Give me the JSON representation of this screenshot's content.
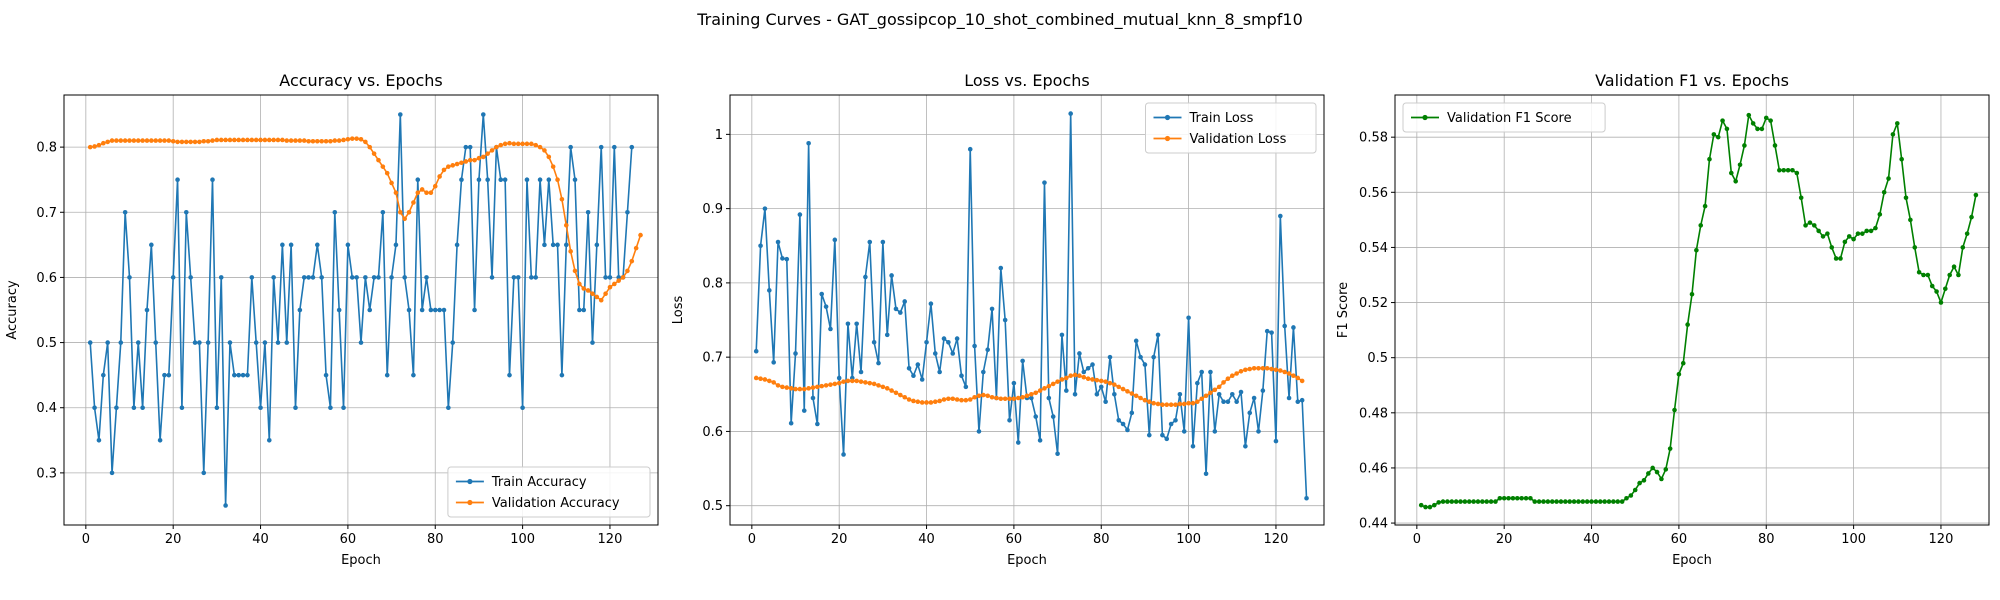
{
  "suptitle": "Training Curves - GAT_gossipcop_10_shot_combined_mutual_knn_8_smpf10",
  "colors": {
    "blue": "#1f77b4",
    "orange": "#ff7f0e",
    "green": "#008000",
    "grid": "#b0b0b0"
  },
  "chart_data": [
    {
      "type": "line",
      "title": "Accuracy vs. Epochs",
      "xlabel": "Epoch",
      "ylabel": "Accuracy",
      "xlim": [
        -5,
        131
      ],
      "ylim": [
        0.22,
        0.88
      ],
      "xticks": [
        0,
        20,
        40,
        60,
        80,
        100,
        120
      ],
      "yticks": [
        0.3,
        0.4,
        0.5,
        0.6,
        0.7,
        0.8
      ],
      "grid": true,
      "legend": "lower right",
      "series": [
        {
          "name": "Train Accuracy",
          "color": "#1f77b4",
          "values": [
            0.5,
            0.4,
            0.35,
            0.45,
            0.5,
            0.3,
            0.4,
            0.5,
            0.7,
            0.6,
            0.4,
            0.5,
            0.4,
            0.55,
            0.65,
            0.5,
            0.35,
            0.45,
            0.45,
            0.6,
            0.75,
            0.4,
            0.7,
            0.6,
            0.5,
            0.5,
            0.3,
            0.5,
            0.75,
            0.4,
            0.6,
            0.25,
            0.5,
            0.45,
            0.45,
            0.45,
            0.45,
            0.6,
            0.5,
            0.4,
            0.5,
            0.35,
            0.6,
            0.5,
            0.65,
            0.5,
            0.65,
            0.4,
            0.55,
            0.6,
            0.6,
            0.6,
            0.65,
            0.6,
            0.45,
            0.4,
            0.7,
            0.55,
            0.4,
            0.65,
            0.6,
            0.6,
            0.5,
            0.6,
            0.55,
            0.6,
            0.6,
            0.7,
            0.45,
            0.6,
            0.65,
            0.85,
            0.6,
            0.55,
            0.45,
            0.75,
            0.55,
            0.6,
            0.55,
            0.55,
            0.55,
            0.55,
            0.4,
            0.5,
            0.65,
            0.75,
            0.8,
            0.8,
            0.55,
            0.75,
            0.85,
            0.75,
            0.6,
            0.8,
            0.75,
            0.75,
            0.45,
            0.6,
            0.6,
            0.4,
            0.75,
            0.6,
            0.6,
            0.75,
            0.65,
            0.75,
            0.65,
            0.65,
            0.45,
            0.65,
            0.8,
            0.75,
            0.55,
            0.55,
            0.7,
            0.5,
            0.65,
            0.8,
            0.6,
            0.6,
            0.8,
            0.6,
            0.6,
            0.7,
            0.8
          ]
        },
        {
          "name": "Validation Accuracy",
          "color": "#ff7f0e",
          "values": [
            0.8,
            0.801,
            0.803,
            0.806,
            0.808,
            0.81,
            0.81,
            0.81,
            0.81,
            0.81,
            0.81,
            0.81,
            0.81,
            0.81,
            0.81,
            0.81,
            0.81,
            0.81,
            0.81,
            0.809,
            0.808,
            0.808,
            0.808,
            0.808,
            0.808,
            0.808,
            0.809,
            0.809,
            0.81,
            0.811,
            0.811,
            0.811,
            0.811,
            0.811,
            0.811,
            0.811,
            0.811,
            0.811,
            0.811,
            0.811,
            0.811,
            0.811,
            0.811,
            0.811,
            0.811,
            0.81,
            0.81,
            0.81,
            0.81,
            0.81,
            0.809,
            0.809,
            0.809,
            0.809,
            0.809,
            0.809,
            0.81,
            0.81,
            0.811,
            0.812,
            0.813,
            0.813,
            0.812,
            0.808,
            0.8,
            0.79,
            0.78,
            0.77,
            0.76,
            0.745,
            0.73,
            0.7,
            0.69,
            0.7,
            0.715,
            0.73,
            0.735,
            0.73,
            0.73,
            0.74,
            0.755,
            0.765,
            0.77,
            0.772,
            0.774,
            0.776,
            0.778,
            0.78,
            0.78,
            0.783,
            0.785,
            0.79,
            0.795,
            0.8,
            0.803,
            0.805,
            0.806,
            0.805,
            0.805,
            0.805,
            0.805,
            0.805,
            0.803,
            0.8,
            0.795,
            0.785,
            0.77,
            0.75,
            0.72,
            0.68,
            0.64,
            0.61,
            0.59,
            0.583,
            0.58,
            0.575,
            0.57,
            0.565,
            0.575,
            0.585,
            0.59,
            0.595,
            0.6,
            0.61,
            0.625,
            0.645,
            0.665
          ]
        }
      ]
    },
    {
      "type": "line",
      "title": "Loss vs. Epochs",
      "xlabel": "Epoch",
      "ylabel": "Loss",
      "xlim": [
        -5,
        131
      ],
      "ylim": [
        0.474,
        1.053
      ],
      "xticks": [
        0,
        20,
        40,
        60,
        80,
        100,
        120
      ],
      "yticks": [
        0.5,
        0.6,
        0.7,
        0.8,
        0.9,
        1.0
      ],
      "grid": true,
      "legend": "upper right",
      "series": [
        {
          "name": "Train Loss",
          "color": "#1f77b4",
          "values": [
            0.708,
            0.85,
            0.9,
            0.79,
            0.693,
            0.855,
            0.833,
            0.832,
            0.611,
            0.705,
            0.892,
            0.628,
            0.988,
            0.645,
            0.61,
            0.785,
            0.768,
            0.738,
            0.858,
            0.672,
            0.569,
            0.745,
            0.672,
            0.745,
            0.68,
            0.808,
            0.855,
            0.72,
            0.692,
            0.855,
            0.73,
            0.81,
            0.765,
            0.76,
            0.775,
            0.685,
            0.675,
            0.69,
            0.67,
            0.72,
            0.772,
            0.705,
            0.68,
            0.725,
            0.72,
            0.705,
            0.725,
            0.675,
            0.66,
            0.98,
            0.715,
            0.6,
            0.68,
            0.71,
            0.765,
            0.645,
            0.82,
            0.75,
            0.615,
            0.665,
            0.585,
            0.695,
            0.645,
            0.645,
            0.62,
            0.588,
            0.935,
            0.645,
            0.62,
            0.57,
            0.73,
            0.655,
            1.028,
            0.65,
            0.705,
            0.68,
            0.685,
            0.69,
            0.65,
            0.66,
            0.64,
            0.7,
            0.65,
            0.615,
            0.61,
            0.602,
            0.625,
            0.722,
            0.7,
            0.69,
            0.595,
            0.7,
            0.73,
            0.595,
            0.59,
            0.61,
            0.615,
            0.65,
            0.6,
            0.753,
            0.58,
            0.665,
            0.68,
            0.543,
            0.68,
            0.6,
            0.65,
            0.64,
            0.64,
            0.65,
            0.64,
            0.653,
            0.58,
            0.625,
            0.645,
            0.6,
            0.655,
            0.735,
            0.733,
            0.587,
            0.89,
            0.742,
            0.645,
            0.74,
            0.64,
            0.642,
            0.51
          ]
        },
        {
          "name": "Validation Loss",
          "color": "#ff7f0e",
          "values": [
            0.672,
            0.671,
            0.67,
            0.668,
            0.666,
            0.662,
            0.66,
            0.659,
            0.658,
            0.657,
            0.657,
            0.657,
            0.658,
            0.659,
            0.66,
            0.661,
            0.662,
            0.663,
            0.664,
            0.665,
            0.667,
            0.668,
            0.668,
            0.668,
            0.667,
            0.666,
            0.665,
            0.664,
            0.662,
            0.66,
            0.658,
            0.655,
            0.652,
            0.649,
            0.646,
            0.643,
            0.641,
            0.64,
            0.639,
            0.639,
            0.639,
            0.64,
            0.641,
            0.643,
            0.644,
            0.644,
            0.643,
            0.642,
            0.642,
            0.643,
            0.646,
            0.648,
            0.649,
            0.648,
            0.646,
            0.645,
            0.644,
            0.644,
            0.644,
            0.644,
            0.645,
            0.646,
            0.648,
            0.65,
            0.652,
            0.655,
            0.658,
            0.661,
            0.664,
            0.667,
            0.67,
            0.672,
            0.675,
            0.676,
            0.675,
            0.673,
            0.671,
            0.67,
            0.669,
            0.668,
            0.667,
            0.665,
            0.663,
            0.66,
            0.657,
            0.654,
            0.651,
            0.648,
            0.645,
            0.642,
            0.64,
            0.638,
            0.637,
            0.636,
            0.636,
            0.636,
            0.636,
            0.637,
            0.637,
            0.638,
            0.638,
            0.64,
            0.644,
            0.648,
            0.652,
            0.656,
            0.66,
            0.666,
            0.671,
            0.675,
            0.678,
            0.681,
            0.683,
            0.684,
            0.685,
            0.685,
            0.685,
            0.685,
            0.684,
            0.683,
            0.682,
            0.68,
            0.678,
            0.675,
            0.672,
            0.668
          ]
        }
      ]
    },
    {
      "type": "line",
      "title": "Validation F1 vs. Epochs",
      "xlabel": "Epoch",
      "ylabel": "F1 Score",
      "xlim": [
        -5,
        131
      ],
      "ylim": [
        0.4393,
        0.5953
      ],
      "xticks": [
        0,
        20,
        40,
        60,
        80,
        100,
        120
      ],
      "yticks": [
        0.44,
        0.46,
        0.48,
        0.5,
        0.52,
        0.54,
        0.56,
        0.58
      ],
      "grid": true,
      "legend": "upper left",
      "series": [
        {
          "name": "Validation F1 Score",
          "color": "#008000",
          "values": [
            0.4465,
            0.4458,
            0.4458,
            0.4465,
            0.4475,
            0.4478,
            0.4478,
            0.4478,
            0.4478,
            0.4478,
            0.4478,
            0.4478,
            0.4478,
            0.4478,
            0.4478,
            0.4478,
            0.4478,
            0.4478,
            0.449,
            0.449,
            0.449,
            0.449,
            0.449,
            0.449,
            0.449,
            0.449,
            0.4478,
            0.4478,
            0.4478,
            0.4478,
            0.4478,
            0.4478,
            0.4478,
            0.4478,
            0.4478,
            0.4478,
            0.4478,
            0.4478,
            0.4478,
            0.4478,
            0.4478,
            0.4478,
            0.4478,
            0.4478,
            0.4478,
            0.4478,
            0.4478,
            0.449,
            0.45,
            0.452,
            0.4545,
            0.4555,
            0.458,
            0.46,
            0.4585,
            0.456,
            0.4595,
            0.467,
            0.481,
            0.494,
            0.498,
            0.512,
            0.523,
            0.539,
            0.548,
            0.555,
            0.572,
            0.581,
            0.58,
            0.586,
            0.583,
            0.567,
            0.564,
            0.57,
            0.577,
            0.588,
            0.585,
            0.583,
            0.583,
            0.587,
            0.586,
            0.577,
            0.568,
            0.568,
            0.568,
            0.568,
            0.567,
            0.558,
            0.548,
            0.549,
            0.548,
            0.546,
            0.544,
            0.545,
            0.54,
            0.536,
            0.536,
            0.542,
            0.544,
            0.543,
            0.545,
            0.545,
            0.546,
            0.546,
            0.547,
            0.552,
            0.56,
            0.565,
            0.581,
            0.585,
            0.572,
            0.558,
            0.55,
            0.54,
            0.531,
            0.53,
            0.53,
            0.526,
            0.524,
            0.52,
            0.525,
            0.53,
            0.533,
            0.53,
            0.54,
            0.545,
            0.551,
            0.559
          ]
        }
      ]
    }
  ]
}
